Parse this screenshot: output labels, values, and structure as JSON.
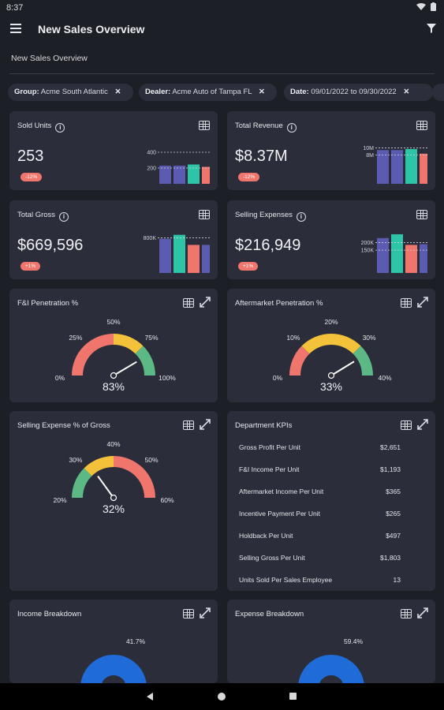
{
  "status_bar": {
    "time": "8:37"
  },
  "app_bar": {
    "title": "New Sales Overview"
  },
  "page_subtitle": "New Sales Overview",
  "filters": [
    {
      "label": "Group:",
      "value": "Acme South Atlantic"
    },
    {
      "label": "Dealer:",
      "value": "Acme Auto of Tampa FL"
    },
    {
      "label": "Date:",
      "value": "09/01/2022 to 09/30/2022"
    }
  ],
  "colors": {
    "purple": "#5b5bb1",
    "teal": "#2ec4a8",
    "red": "#f0756d",
    "yellow": "#f3c23a",
    "green": "#5cb884",
    "blue": "#1f6bd8"
  },
  "cards": {
    "sold_units": {
      "title": "Sold Units",
      "value": "253",
      "delta": "-12%",
      "chart_data": {
        "type": "bar",
        "gridlines": [
          "400",
          "200"
        ],
        "yrange": [
          0,
          500
        ],
        "values": [
          230,
          230,
          245,
          215
        ],
        "colors": [
          "#5b5bb1",
          "#5b5bb1",
          "#2ec4a8",
          "#f0756d"
        ]
      }
    },
    "total_revenue": {
      "title": "Total Revenue",
      "value": "$8.37M",
      "delta": "-12%",
      "chart_data": {
        "type": "bar",
        "gridlines": [
          "10M",
          "8M"
        ],
        "yrange": [
          0,
          11000000
        ],
        "values": [
          9400000,
          9400000,
          9700000,
          8400000
        ],
        "colors": [
          "#5b5bb1",
          "#5b5bb1",
          "#2ec4a8",
          "#f0756d"
        ]
      }
    },
    "total_gross": {
      "title": "Total Gross",
      "value": "$669,596",
      "delta": "+1%",
      "chart_data": {
        "type": "bar",
        "gridlines": [
          "800K"
        ],
        "yrange": [
          0,
          900000
        ],
        "values": [
          780000,
          870000,
          640000,
          640000
        ],
        "colors": [
          "#5b5bb1",
          "#2ec4a8",
          "#f0756d",
          "#5b5bb1"
        ]
      }
    },
    "selling_expenses": {
      "title": "Selling Expenses",
      "value": "$216,949",
      "delta": "+1%",
      "chart_data": {
        "type": "bar",
        "gridlines": [
          "200K",
          "150K"
        ],
        "yrange": [
          0,
          260000
        ],
        "values": [
          230000,
          255000,
          185000,
          190000
        ],
        "colors": [
          "#5b5bb1",
          "#2ec4a8",
          "#f0756d",
          "#5b5bb1"
        ]
      }
    },
    "fi_penetration": {
      "title": "F&I Penetration %",
      "chart_data": {
        "type": "gauge",
        "tick_labels": [
          "0%",
          "25%",
          "50%",
          "75%",
          "100%"
        ],
        "min": 0,
        "max": 100,
        "value": 83,
        "value_label": "83%",
        "bands": [
          {
            "to": 0.5,
            "color": "#f0756d"
          },
          {
            "to": 0.75,
            "color": "#f3c23a"
          },
          {
            "to": 1,
            "color": "#5cb884"
          }
        ]
      }
    },
    "aftermarket_penetration": {
      "title": "Aftermarket Penetration %",
      "chart_data": {
        "type": "gauge",
        "tick_labels": [
          "0%",
          "10%",
          "20%",
          "30%",
          "40%"
        ],
        "min": 0,
        "max": 40,
        "value": 33,
        "value_label": "33%",
        "bands": [
          {
            "to": 0.25,
            "color": "#f0756d"
          },
          {
            "to": 0.75,
            "color": "#f3c23a"
          },
          {
            "to": 1,
            "color": "#5cb884"
          }
        ]
      }
    },
    "selling_expense_pct": {
      "title": "Selling Expense % of Gross",
      "chart_data": {
        "type": "gauge",
        "tick_labels": [
          "20%",
          "30%",
          "40%",
          "50%",
          "60%"
        ],
        "min": 20,
        "max": 60,
        "value": 32,
        "value_label": "32%",
        "bands": [
          {
            "to": 0.25,
            "color": "#5cb884"
          },
          {
            "to": 0.5,
            "color": "#f3c23a"
          },
          {
            "to": 1,
            "color": "#f0756d"
          }
        ]
      }
    },
    "department_kpis": {
      "title": "Department KPIs",
      "rows": [
        {
          "label": "Gross Profit Per Unit",
          "value": "$2,651"
        },
        {
          "label": "F&I Income Per Unit",
          "value": "$1,193"
        },
        {
          "label": "Aftermarket Income Per Unit",
          "value": "$365"
        },
        {
          "label": "Incentive Payment Per Unit",
          "value": "$265"
        },
        {
          "label": "Holdback Per Unit",
          "value": "$497"
        },
        {
          "label": "Selling Gross Per Unit",
          "value": "$1,803"
        },
        {
          "label": "Units Sold Per Sales Employee",
          "value": "13"
        }
      ]
    },
    "income_breakdown": {
      "title": "Income Breakdown",
      "chart_data": {
        "type": "pie",
        "slice_label": "41.7%",
        "value": 41.7
      }
    },
    "expense_breakdown": {
      "title": "Expense Breakdown",
      "chart_data": {
        "type": "pie",
        "slice_label": "59.4%",
        "value": 59.4
      }
    }
  }
}
